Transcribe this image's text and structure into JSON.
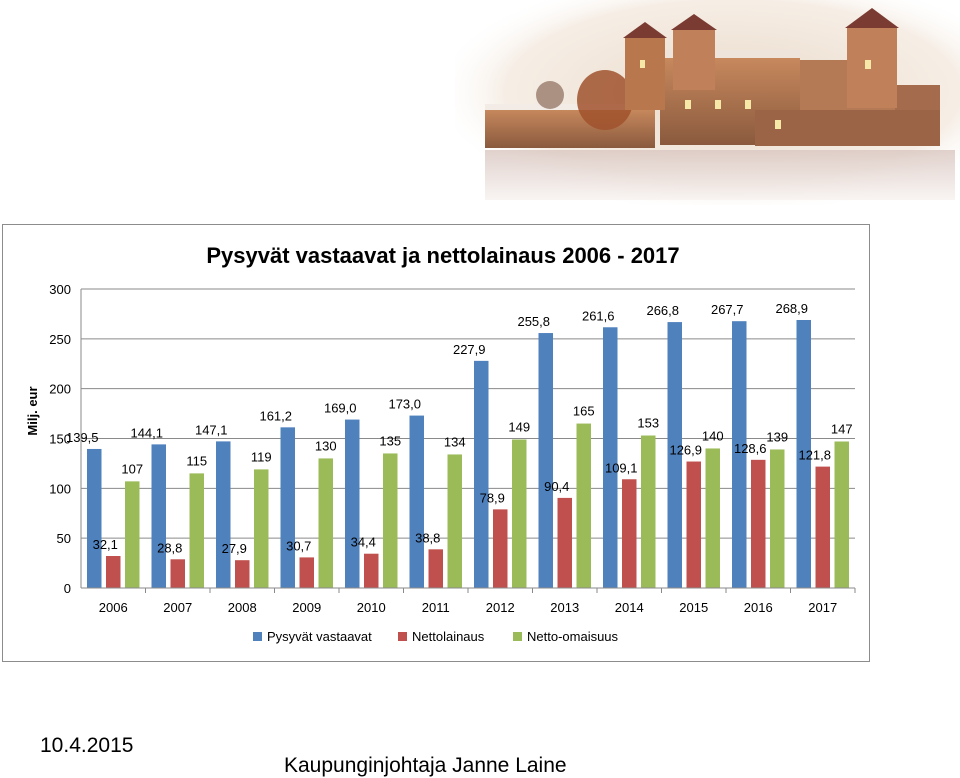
{
  "page": {
    "date": "10.4.2015",
    "author": "Kaupunginjohtaja Janne Laine",
    "header_image": "castle-photo"
  },
  "chart_data": {
    "type": "bar",
    "title": "Pysyvät vastaavat ja nettolainaus 2006 - 2017",
    "ylabel": "Milj. eur",
    "xlabel": "",
    "ylim": [
      0,
      300
    ],
    "yticks": [
      0,
      50,
      100,
      150,
      200,
      250,
      300
    ],
    "grid": true,
    "legend_position": "bottom",
    "categories": [
      "2006",
      "2007",
      "2008",
      "2009",
      "2010",
      "2011",
      "2012",
      "2013",
      "2014",
      "2015",
      "2016",
      "2017"
    ],
    "series": [
      {
        "name": "Pysyvät vastaavat",
        "color": "#4f81bd",
        "values": [
          139.5,
          144.1,
          147.1,
          161.2,
          169.0,
          173.0,
          227.9,
          255.8,
          261.6,
          266.8,
          267.7,
          268.9
        ],
        "labels": [
          "139,5",
          "144,1",
          "147,1",
          "161,2",
          "169,0",
          "173,0",
          "227,9",
          "255,8",
          "261,6",
          "266,8",
          "267,7",
          "268,9"
        ]
      },
      {
        "name": "Nettolainaus",
        "color": "#c0504d",
        "values": [
          32.1,
          28.8,
          27.9,
          30.7,
          34.4,
          38.8,
          78.9,
          90.4,
          109.1,
          126.9,
          128.6,
          121.8
        ],
        "labels": [
          "32,1",
          "28,8",
          "27,9",
          "30,7",
          "34,4",
          "38,8",
          "78,9",
          "90,4",
          "109,1",
          "126,9",
          "128,6",
          "121,8"
        ]
      },
      {
        "name": "Netto-omaisuus",
        "color": "#9bbb59",
        "values": [
          107,
          115,
          119,
          130,
          135,
          134,
          149,
          165,
          153,
          140,
          139,
          147
        ],
        "labels": [
          "107",
          "115",
          "119",
          "130",
          "135",
          "134",
          "149",
          "165",
          "153",
          "140",
          "139",
          "147"
        ]
      }
    ]
  }
}
